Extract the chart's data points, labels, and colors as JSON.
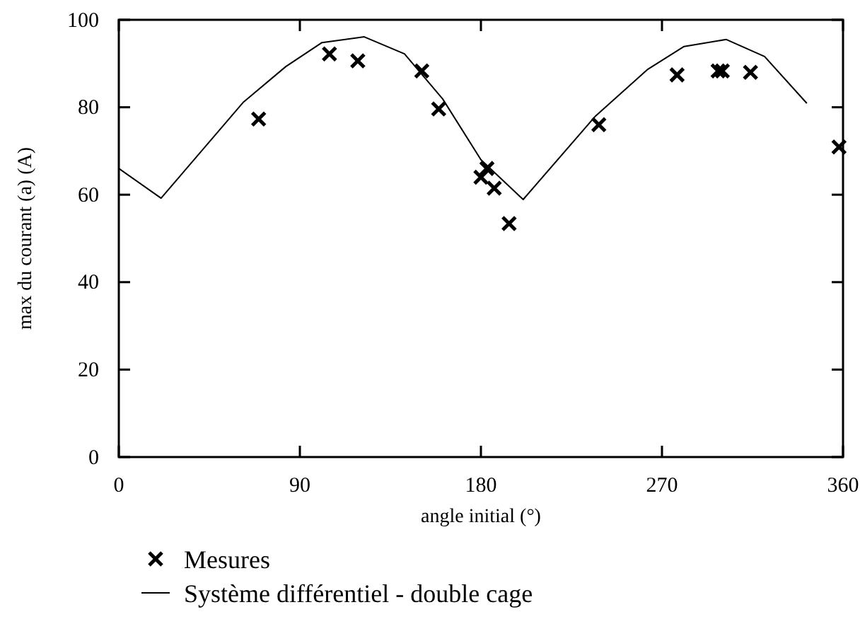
{
  "chart_data": {
    "type": "scatter",
    "xlabel": "angle initial (°)",
    "ylabel": "max du courant (a) (A)",
    "xlim": [
      0,
      360
    ],
    "ylim": [
      0,
      100
    ],
    "xticks": [
      0,
      90,
      180,
      270,
      360
    ],
    "yticks": [
      0,
      20,
      40,
      60,
      80,
      100
    ],
    "grid": false,
    "legend": "bottom",
    "series": [
      {
        "name": "Mesures",
        "marker": "cross",
        "color": "#000000",
        "x": [
          69.5,
          104.7,
          118.8,
          150.6,
          159,
          180,
          183,
          186.6,
          194,
          238.6,
          277.5,
          297.9,
          300,
          314,
          358
        ],
        "values": [
          77.3,
          92.2,
          90.6,
          88.3,
          79.6,
          64,
          66,
          61.5,
          53.4,
          76,
          87.4,
          88.3,
          88.3,
          88,
          70.9
        ]
      },
      {
        "name": "Système différentiel - double cage",
        "type": "line",
        "marker": "none",
        "line_style": "solid",
        "color": "#000000",
        "x": [
          0,
          21,
          62,
          83,
          101,
          122,
          142,
          161,
          180,
          201,
          237,
          263,
          281,
          302,
          321,
          342
        ],
        "values": [
          66,
          59.2,
          81.2,
          89.3,
          94.8,
          96.1,
          92.2,
          81.9,
          68,
          58.9,
          78,
          88.7,
          93.9,
          95.5,
          91.6,
          80.9
        ]
      }
    ]
  }
}
